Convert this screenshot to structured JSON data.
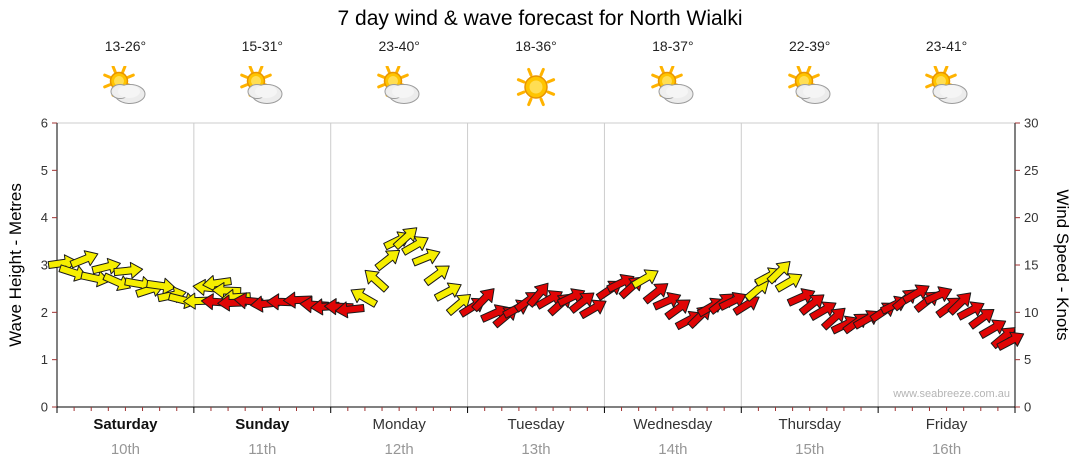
{
  "title": "7 day wind & wave forecast for North Wialki",
  "watermark": "www.seabreeze.com.au",
  "colors": {
    "grid": "#cccccc",
    "axis": "#000000",
    "tick": "#a03333",
    "arrow_outline": "#1a1a1a"
  },
  "axes": {
    "left_label": "Wave Height - Metres",
    "right_label": "Wind Speed - Knots",
    "left_ticks": [
      "0",
      "1",
      "2",
      "3",
      "4",
      "5",
      "6"
    ],
    "right_ticks": [
      "0",
      "5",
      "10",
      "15",
      "20",
      "25",
      "30"
    ]
  },
  "days": [
    {
      "label": "Saturday",
      "date": "10th",
      "temp": "13-26°",
      "icon": "sun-cloud",
      "bold": true
    },
    {
      "label": "Sunday",
      "date": "11th",
      "temp": "15-31°",
      "icon": "sun-cloud",
      "bold": true
    },
    {
      "label": "Monday",
      "date": "12th",
      "temp": "23-40°",
      "icon": "sun-cloud",
      "bold": false
    },
    {
      "label": "Tuesday",
      "date": "13th",
      "temp": "18-36°",
      "icon": "sun",
      "bold": false
    },
    {
      "label": "Wednesday",
      "date": "14th",
      "temp": "18-37°",
      "icon": "sun-cloud",
      "bold": false
    },
    {
      "label": "Thursday",
      "date": "15th",
      "temp": "22-39°",
      "icon": "sun-cloud",
      "bold": false
    },
    {
      "label": "Friday",
      "date": "16th",
      "temp": "23-41°",
      "icon": "sun-cloud",
      "bold": false
    }
  ],
  "chart_data": {
    "type": "scatter",
    "subtype": "wind-arrow-forecast",
    "title": "7 day wind & wave forecast for North Wialki",
    "categories": [
      "Saturday 10th",
      "Sunday 11th",
      "Monday 12th",
      "Tuesday 13th",
      "Wednesday 14th",
      "Thursday 15th",
      "Friday 16th"
    ],
    "x_range_days": [
      0,
      7
    ],
    "y_left": {
      "label": "Wave Height - Metres",
      "range": [
        0,
        6
      ]
    },
    "y_right": {
      "label": "Wind Speed - Knots",
      "range": [
        0,
        30
      ]
    },
    "grid": "vertical day boundaries only",
    "dir_convention": "degrees, 0 = arrow points right (east), positive = clockwise",
    "arrow_colors": {
      "y": "#f6ee00",
      "r": "#e00505"
    },
    "points": [
      {
        "t": 0.04,
        "kn": 15.2,
        "dir": -8,
        "c": "y"
      },
      {
        "t": 0.12,
        "kn": 14.2,
        "dir": 18,
        "c": "y"
      },
      {
        "t": 0.2,
        "kn": 15.6,
        "dir": -22,
        "c": "y"
      },
      {
        "t": 0.28,
        "kn": 13.6,
        "dir": 12,
        "c": "y"
      },
      {
        "t": 0.36,
        "kn": 14.8,
        "dir": -14,
        "c": "y"
      },
      {
        "t": 0.44,
        "kn": 13.2,
        "dir": 24,
        "c": "y"
      },
      {
        "t": 0.52,
        "kn": 14.4,
        "dir": -6,
        "c": "y"
      },
      {
        "t": 0.6,
        "kn": 13.0,
        "dir": 10,
        "c": "y"
      },
      {
        "t": 0.68,
        "kn": 12.4,
        "dir": -18,
        "c": "y"
      },
      {
        "t": 0.76,
        "kn": 12.8,
        "dir": 8,
        "c": "y"
      },
      {
        "t": 0.84,
        "kn": 11.8,
        "dir": -12,
        "c": "y"
      },
      {
        "t": 0.92,
        "kn": 11.3,
        "dir": 14,
        "c": "y"
      },
      {
        "t": 1.03,
        "kn": 11.2,
        "dir": 178,
        "c": "y"
      },
      {
        "t": 1.1,
        "kn": 12.6,
        "dir": 186,
        "c": "y"
      },
      {
        "t": 1.17,
        "kn": 13.1,
        "dir": 172,
        "c": "y"
      },
      {
        "t": 1.24,
        "kn": 12.3,
        "dir": 182,
        "c": "y"
      },
      {
        "t": 1.31,
        "kn": 11.6,
        "dir": 176,
        "c": "y"
      },
      {
        "t": 1.16,
        "kn": 11.1,
        "dir": 184,
        "c": "r"
      },
      {
        "t": 1.28,
        "kn": 11.0,
        "dir": 178,
        "c": "r"
      },
      {
        "t": 1.4,
        "kn": 11.2,
        "dir": 186,
        "c": "r"
      },
      {
        "t": 1.52,
        "kn": 10.9,
        "dir": 174,
        "c": "r"
      },
      {
        "t": 1.64,
        "kn": 11.1,
        "dir": 182,
        "c": "r"
      },
      {
        "t": 1.76,
        "kn": 11.3,
        "dir": 178,
        "c": "r"
      },
      {
        "t": 1.88,
        "kn": 10.8,
        "dir": 184,
        "c": "r"
      },
      {
        "t": 1.96,
        "kn": 10.6,
        "dir": 176,
        "c": "r"
      },
      {
        "t": 2.06,
        "kn": 10.6,
        "dir": 182,
        "c": "r"
      },
      {
        "t": 2.14,
        "kn": 10.3,
        "dir": 174,
        "c": "r"
      },
      {
        "t": 2.24,
        "kn": 11.6,
        "dir": 210,
        "c": "y"
      },
      {
        "t": 2.33,
        "kn": 13.4,
        "dir": 222,
        "c": "y"
      },
      {
        "t": 2.42,
        "kn": 15.6,
        "dir": -38,
        "c": "y"
      },
      {
        "t": 2.49,
        "kn": 17.6,
        "dir": -26,
        "c": "y"
      },
      {
        "t": 2.55,
        "kn": 17.9,
        "dir": -42,
        "c": "y"
      },
      {
        "t": 2.62,
        "kn": 17.1,
        "dir": -30,
        "c": "y"
      },
      {
        "t": 2.7,
        "kn": 15.8,
        "dir": -22,
        "c": "y"
      },
      {
        "t": 2.78,
        "kn": 14.0,
        "dir": -36,
        "c": "y"
      },
      {
        "t": 2.86,
        "kn": 12.2,
        "dir": -28,
        "c": "y"
      },
      {
        "t": 2.94,
        "kn": 10.9,
        "dir": -40,
        "c": "y"
      },
      {
        "t": 3.04,
        "kn": 10.6,
        "dir": -32,
        "c": "r"
      },
      {
        "t": 3.12,
        "kn": 11.4,
        "dir": -46,
        "c": "r"
      },
      {
        "t": 3.2,
        "kn": 9.9,
        "dir": -24,
        "c": "r"
      },
      {
        "t": 3.28,
        "kn": 9.6,
        "dir": -40,
        "c": "r"
      },
      {
        "t": 3.36,
        "kn": 10.4,
        "dir": -28,
        "c": "r"
      },
      {
        "t": 3.44,
        "kn": 11.2,
        "dir": -36,
        "c": "r"
      },
      {
        "t": 3.52,
        "kn": 11.9,
        "dir": -50,
        "c": "r"
      },
      {
        "t": 3.6,
        "kn": 11.4,
        "dir": -30,
        "c": "r"
      },
      {
        "t": 3.68,
        "kn": 10.9,
        "dir": -42,
        "c": "r"
      },
      {
        "t": 3.76,
        "kn": 11.6,
        "dir": -26,
        "c": "r"
      },
      {
        "t": 3.84,
        "kn": 11.1,
        "dir": -38,
        "c": "r"
      },
      {
        "t": 3.92,
        "kn": 10.4,
        "dir": -30,
        "c": "r"
      },
      {
        "t": 4.04,
        "kn": 12.4,
        "dir": -34,
        "c": "r"
      },
      {
        "t": 4.12,
        "kn": 13.1,
        "dir": -26,
        "c": "r"
      },
      {
        "t": 4.2,
        "kn": 12.7,
        "dir": -42,
        "c": "r"
      },
      {
        "t": 4.3,
        "kn": 13.6,
        "dir": -30,
        "c": "y"
      },
      {
        "t": 4.38,
        "kn": 12.1,
        "dir": -38,
        "c": "r"
      },
      {
        "t": 4.46,
        "kn": 11.2,
        "dir": -24,
        "c": "r"
      },
      {
        "t": 4.54,
        "kn": 10.4,
        "dir": -36,
        "c": "r"
      },
      {
        "t": 4.62,
        "kn": 9.2,
        "dir": -28,
        "c": "r"
      },
      {
        "t": 4.7,
        "kn": 9.6,
        "dir": -44,
        "c": "r"
      },
      {
        "t": 4.78,
        "kn": 10.6,
        "dir": -30,
        "c": "r"
      },
      {
        "t": 4.86,
        "kn": 11.0,
        "dir": -38,
        "c": "r"
      },
      {
        "t": 4.94,
        "kn": 11.2,
        "dir": -26,
        "c": "r"
      },
      {
        "t": 5.04,
        "kn": 10.8,
        "dir": -32,
        "c": "r"
      },
      {
        "t": 5.12,
        "kn": 12.4,
        "dir": -40,
        "c": "y"
      },
      {
        "t": 5.2,
        "kn": 13.8,
        "dir": -28,
        "c": "y"
      },
      {
        "t": 5.28,
        "kn": 14.3,
        "dir": -44,
        "c": "y"
      },
      {
        "t": 5.35,
        "kn": 13.2,
        "dir": -30,
        "c": "y"
      },
      {
        "t": 5.44,
        "kn": 11.6,
        "dir": -24,
        "c": "r"
      },
      {
        "t": 5.52,
        "kn": 10.9,
        "dir": -38,
        "c": "r"
      },
      {
        "t": 5.6,
        "kn": 10.2,
        "dir": -30,
        "c": "r"
      },
      {
        "t": 5.68,
        "kn": 9.4,
        "dir": -42,
        "c": "r"
      },
      {
        "t": 5.76,
        "kn": 8.7,
        "dir": -26,
        "c": "r"
      },
      {
        "t": 5.84,
        "kn": 8.9,
        "dir": -36,
        "c": "r"
      },
      {
        "t": 5.92,
        "kn": 9.3,
        "dir": -30,
        "c": "r"
      },
      {
        "t": 6.04,
        "kn": 10.1,
        "dir": -34,
        "c": "r"
      },
      {
        "t": 6.12,
        "kn": 10.8,
        "dir": -26,
        "c": "r"
      },
      {
        "t": 6.2,
        "kn": 11.4,
        "dir": -40,
        "c": "r"
      },
      {
        "t": 6.28,
        "kn": 12.0,
        "dir": -30,
        "c": "r"
      },
      {
        "t": 6.36,
        "kn": 11.2,
        "dir": -38,
        "c": "r"
      },
      {
        "t": 6.44,
        "kn": 11.8,
        "dir": -24,
        "c": "r"
      },
      {
        "t": 6.52,
        "kn": 10.6,
        "dir": -36,
        "c": "r"
      },
      {
        "t": 6.6,
        "kn": 11.0,
        "dir": -44,
        "c": "r"
      },
      {
        "t": 6.68,
        "kn": 10.2,
        "dir": -28,
        "c": "r"
      },
      {
        "t": 6.76,
        "kn": 9.4,
        "dir": -36,
        "c": "r"
      },
      {
        "t": 6.84,
        "kn": 8.3,
        "dir": -30,
        "c": "r"
      },
      {
        "t": 6.92,
        "kn": 7.4,
        "dir": -40,
        "c": "r"
      },
      {
        "t": 6.97,
        "kn": 7.0,
        "dir": -28,
        "c": "r"
      }
    ]
  }
}
